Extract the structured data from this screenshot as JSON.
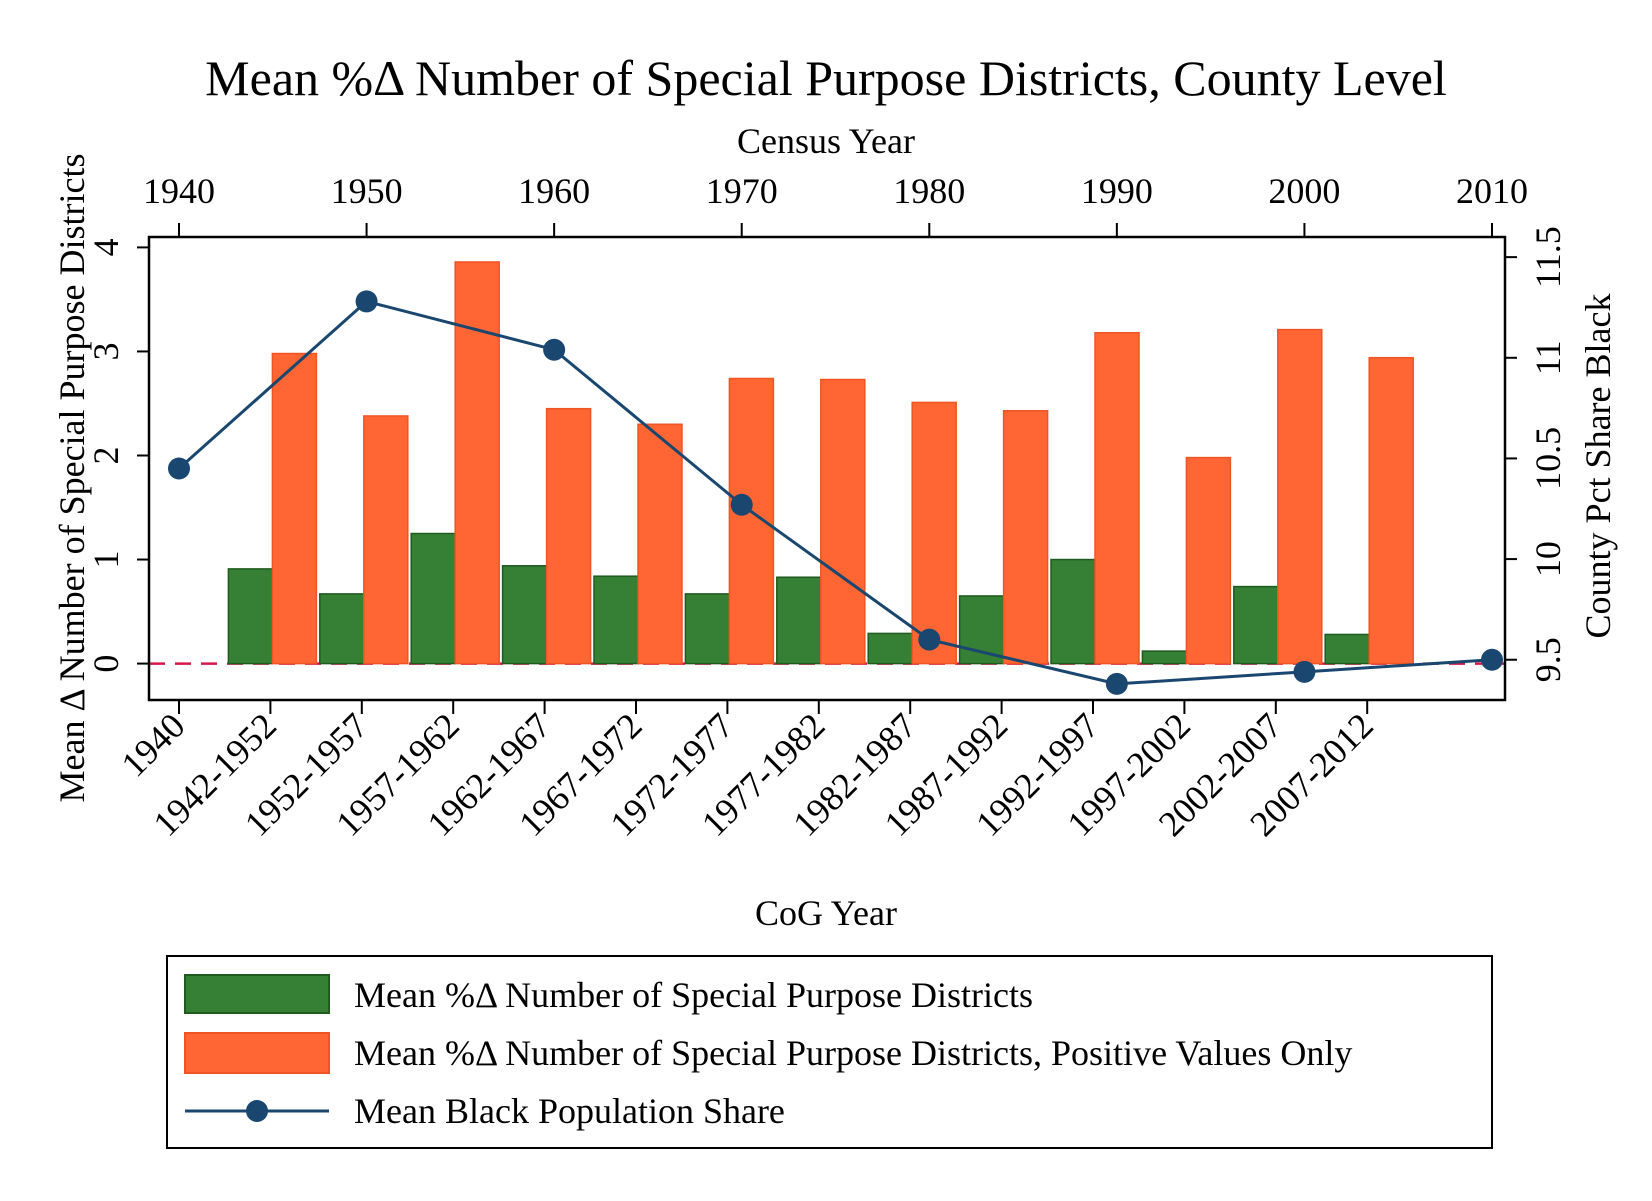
{
  "chart_data": {
    "type": "bar",
    "title": "Mean %Δ Number of Special Purpose Districts, County Level",
    "xlabel_bottom": "CoG Year",
    "xlabel_top": "Census Year",
    "ylabel_left": "Mean Δ Number of Special Purpose Districts",
    "ylabel_right": "County Pct Share Black",
    "categories": [
      "1940",
      "1942-1952",
      "1952-1957",
      "1957-1962",
      "1962-1967",
      "1967-1972",
      "1972-1977",
      "1977-1982",
      "1982-1987",
      "1987-1992",
      "1992-1997",
      "1997-2002",
      "2002-2007",
      "2007-2012"
    ],
    "ylim_left": [
      -0.35,
      4.1
    ],
    "yticks_left": [
      "0",
      "1",
      "2",
      "3",
      "4"
    ],
    "ylim_right": [
      9.3,
      11.6
    ],
    "yticks_right": [
      "9.5",
      "10",
      "10.5",
      "11",
      "11.5"
    ],
    "xlim_top": [
      1940,
      2010
    ],
    "xticks_top": [
      "1940",
      "1950",
      "1960",
      "1970",
      "1980",
      "1990",
      "2000",
      "2010"
    ],
    "reference_line": {
      "y": 0,
      "style": "dashed",
      "color": "#d6184a"
    },
    "series": [
      {
        "name": "Mean %Δ Number of Special Purpose Districts",
        "kind": "bar",
        "axis": "left",
        "color": "#358035",
        "values": [
          null,
          0.91,
          0.67,
          1.25,
          0.94,
          0.84,
          0.67,
          0.83,
          0.29,
          0.65,
          1.0,
          0.12,
          0.74,
          0.28
        ]
      },
      {
        "name": "Mean %Δ Number of Special Purpose Districts, Positive Values Only",
        "kind": "bar",
        "axis": "left",
        "color": "#ff6633",
        "values": [
          null,
          2.98,
          2.38,
          3.86,
          2.45,
          2.3,
          2.74,
          2.73,
          2.51,
          2.43,
          3.18,
          1.98,
          3.21,
          2.94
        ]
      },
      {
        "name": "Mean Black Population Share",
        "kind": "line",
        "axis": "right",
        "x_axis": "top",
        "color": "#1a476f",
        "x": [
          1940,
          1950,
          1960,
          1970,
          1980,
          1990,
          2000,
          2010
        ],
        "values": [
          10.45,
          11.28,
          11.04,
          10.27,
          9.6,
          9.38,
          9.44,
          9.5
        ]
      }
    ],
    "legend_position": "bottom",
    "grid": false
  }
}
